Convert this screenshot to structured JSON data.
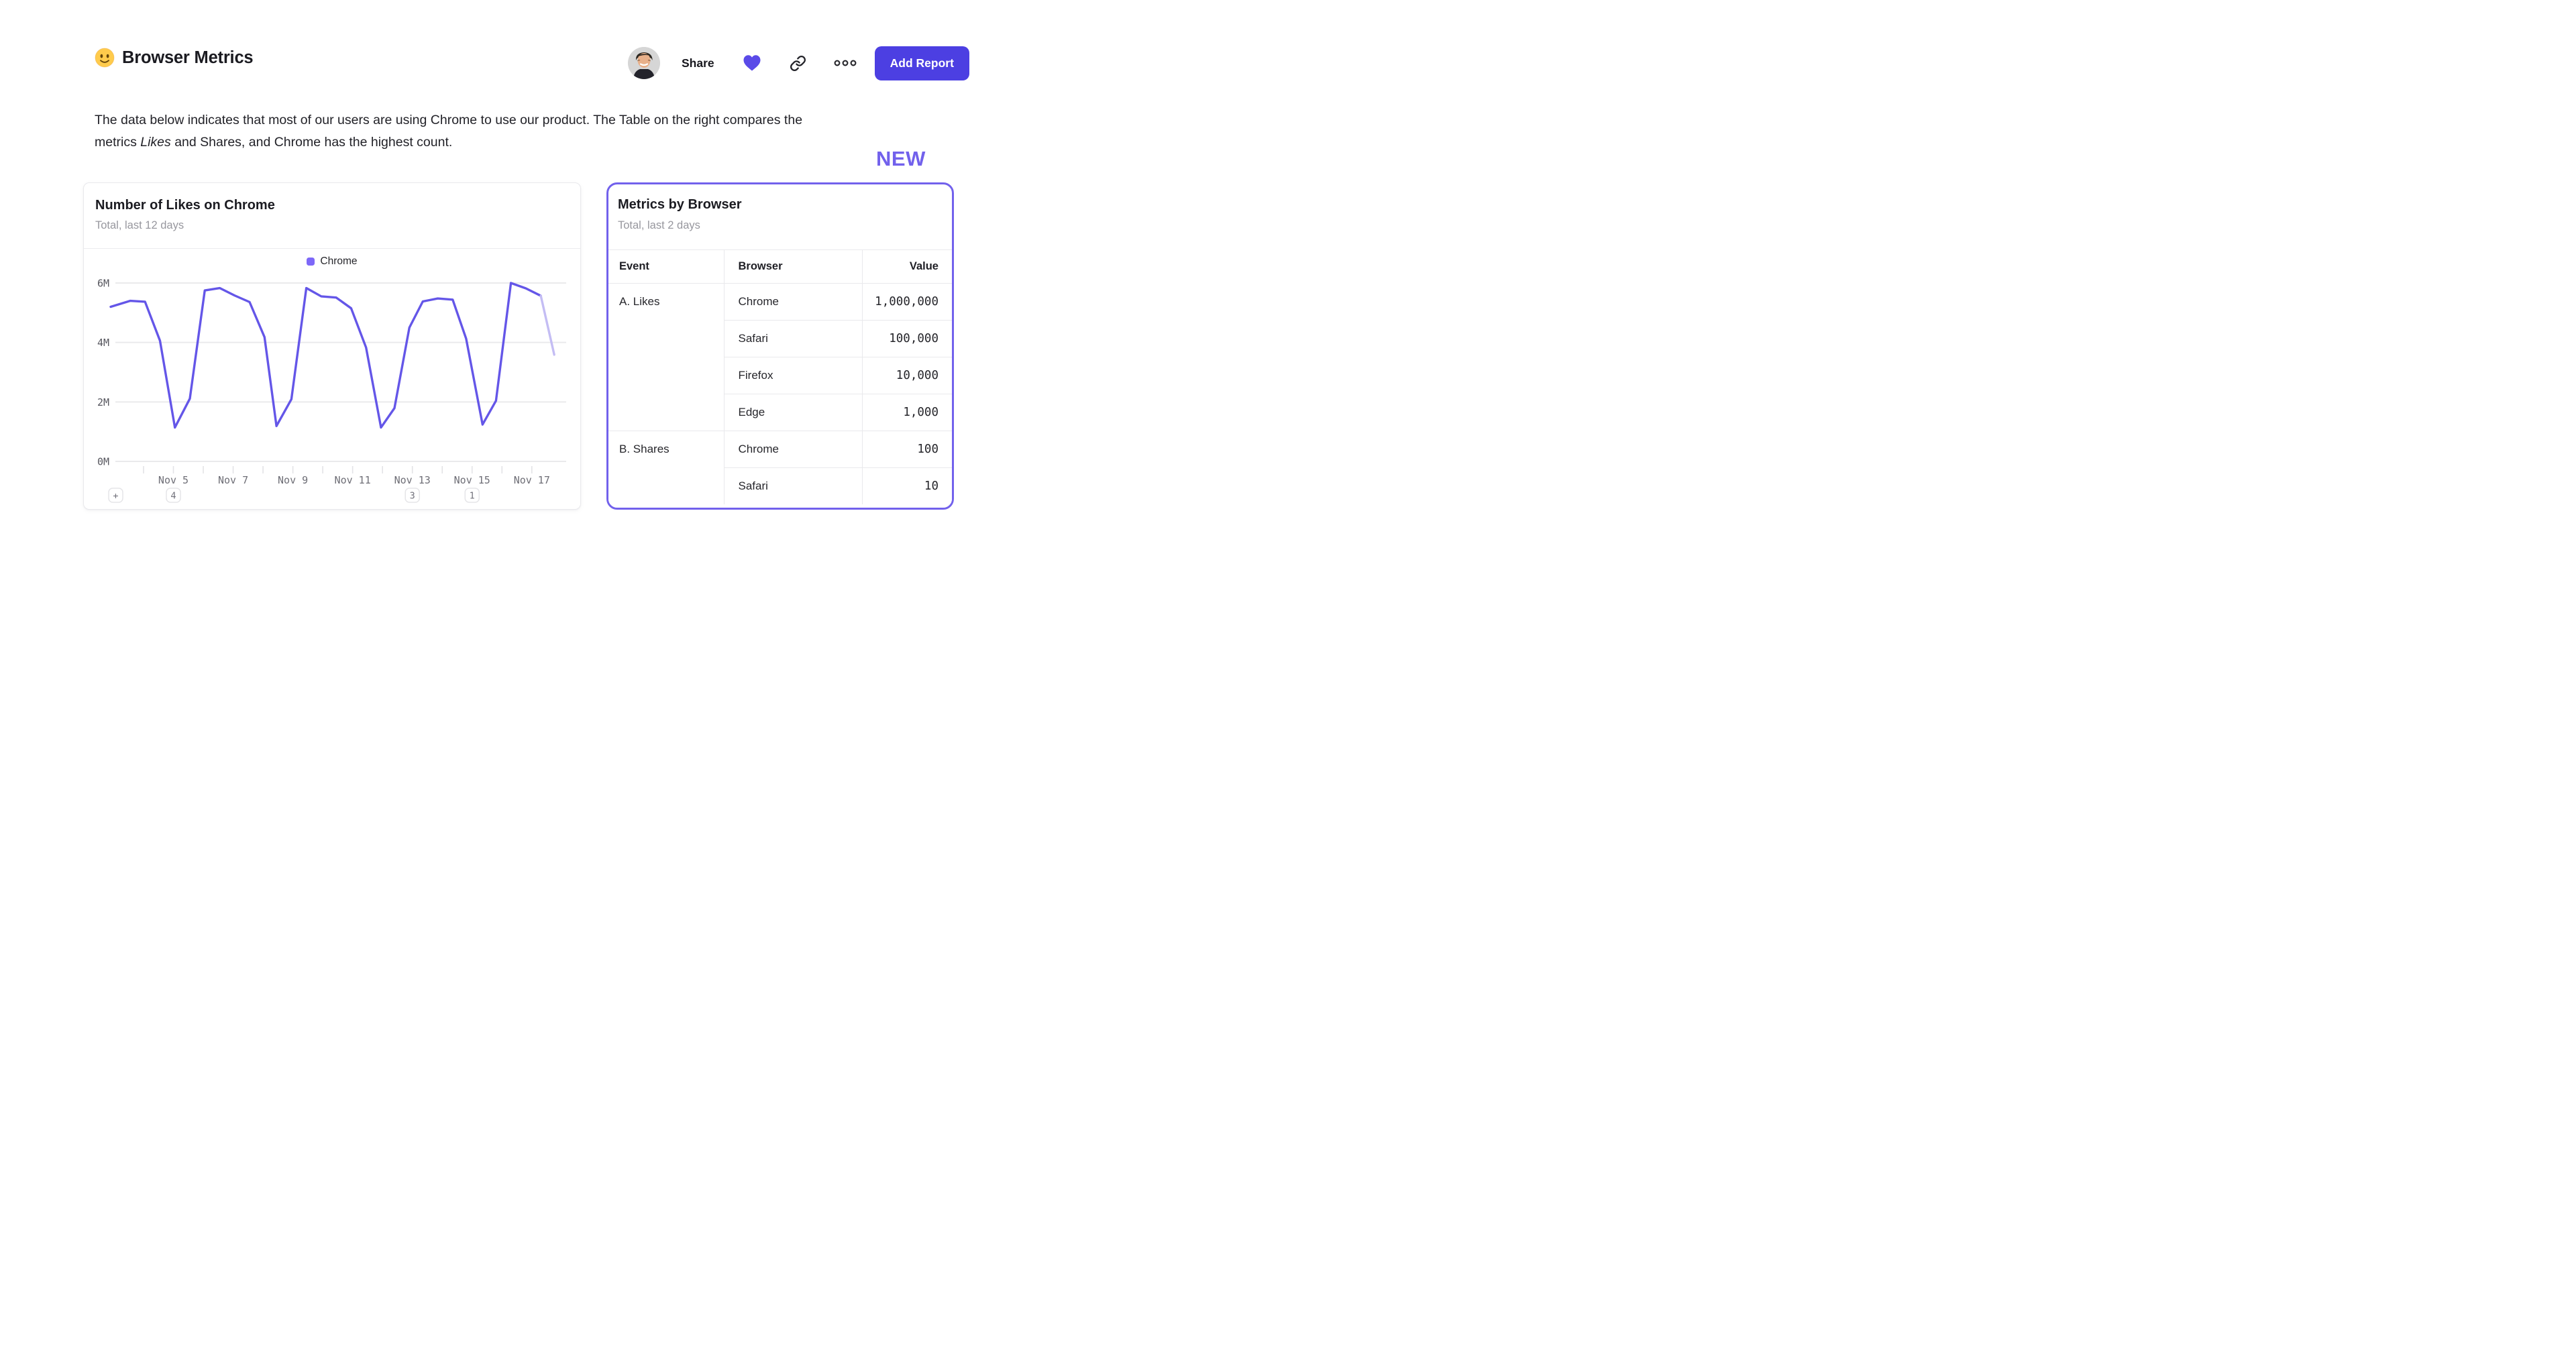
{
  "header": {
    "emoji": "slightly-smiling-face",
    "title": "Browser Metrics",
    "share_label": "Share",
    "add_report_label": "Add Report"
  },
  "description": {
    "line1": "The data below indicates that most of our users are using Chrome to use our product. The Table on the right compares the",
    "line2_pre": "metrics ",
    "line2_italic": "Likes",
    "line2_post": " and Shares, and Chrome has the highest count."
  },
  "new_badge": "NEW",
  "chart_card": {
    "title": "Number of Likes on Chrome",
    "subtitle": "Total, last 12 days",
    "legend": {
      "label": "Chrome",
      "swatch_color": "#7D68F8"
    }
  },
  "chart_data": {
    "type": "line",
    "title": "Number of Likes on Chrome",
    "subtitle": "Total, last 12 days",
    "unit": "millions of likes",
    "grid": true,
    "legend_position": "top-center",
    "x_domain_days": [
      2.9,
      18.15
    ],
    "y_axis": {
      "min": 0,
      "max": 6,
      "tick_values": [
        0,
        2,
        4,
        6
      ],
      "tick_labels": [
        "0M",
        "2M",
        "4M",
        "6M"
      ]
    },
    "x_axis": {
      "tick_days": [
        4,
        5,
        6,
        7,
        8,
        9,
        10,
        11,
        12,
        13,
        14,
        15,
        16,
        17
      ],
      "labels": [
        {
          "day": 5,
          "text": "Nov 5"
        },
        {
          "day": 7,
          "text": "Nov 7"
        },
        {
          "day": 9,
          "text": "Nov 9"
        },
        {
          "day": 11,
          "text": "Nov 11"
        },
        {
          "day": 13,
          "text": "Nov 13"
        },
        {
          "day": 15,
          "text": "Nov 15"
        },
        {
          "day": 17,
          "text": "Nov 17"
        }
      ]
    },
    "series": [
      {
        "name": "Chrome",
        "color": "#6456E8",
        "faded_color": "#C4BDF4",
        "incomplete_last_segment": true,
        "points_day_value_millions": [
          [
            2.9,
            5.2
          ],
          [
            3.55,
            5.4
          ],
          [
            4.05,
            5.37
          ],
          [
            4.55,
            4.06
          ],
          [
            5.05,
            1.14
          ],
          [
            5.55,
            2.11
          ],
          [
            6.05,
            5.75
          ],
          [
            6.55,
            5.83
          ],
          [
            7.05,
            5.58
          ],
          [
            7.55,
            5.36
          ],
          [
            8.05,
            4.18
          ],
          [
            8.45,
            1.19
          ],
          [
            8.95,
            2.09
          ],
          [
            9.45,
            5.83
          ],
          [
            9.95,
            5.55
          ],
          [
            10.45,
            5.51
          ],
          [
            10.95,
            5.15
          ],
          [
            11.45,
            3.83
          ],
          [
            11.95,
            1.14
          ],
          [
            12.4,
            1.79
          ],
          [
            12.9,
            4.5
          ],
          [
            13.35,
            5.38
          ],
          [
            13.85,
            5.48
          ],
          [
            14.35,
            5.44
          ],
          [
            14.8,
            4.13
          ],
          [
            15.35,
            1.24
          ],
          [
            15.8,
            2.04
          ],
          [
            16.3,
            6.0
          ],
          [
            16.8,
            5.82
          ],
          [
            17.3,
            5.57
          ],
          [
            17.75,
            3.59
          ]
        ]
      }
    ],
    "annotations": {
      "add_button_label": "+",
      "badges": [
        {
          "day": 5,
          "count": "4"
        },
        {
          "day": 13,
          "count": "3"
        },
        {
          "day": 15,
          "count": "1"
        }
      ]
    }
  },
  "table_card": {
    "title": "Metrics by Browser",
    "subtitle": "Total, last 2 days",
    "columns": [
      "Event",
      "Browser",
      "Value"
    ],
    "groups": [
      {
        "event": "A. Likes",
        "rows": [
          {
            "browser": "Chrome",
            "value": "1,000,000"
          },
          {
            "browser": "Safari",
            "value": "100,000"
          },
          {
            "browser": "Firefox",
            "value": "10,000"
          },
          {
            "browser": "Edge",
            "value": "1,000"
          }
        ]
      },
      {
        "event": "B. Shares",
        "rows": [
          {
            "browser": "Chrome",
            "value": "100"
          },
          {
            "browser": "Safari",
            "value": "10"
          }
        ]
      }
    ]
  },
  "colors": {
    "accent": "#6456E8",
    "accent_light": "#7D68F8",
    "accent_faded": "#C4BDF4",
    "button_bg": "#4C3FE2",
    "heart": "#5A4AE8",
    "purple_border": "#7261EC",
    "grid": "#EAEAEC"
  }
}
